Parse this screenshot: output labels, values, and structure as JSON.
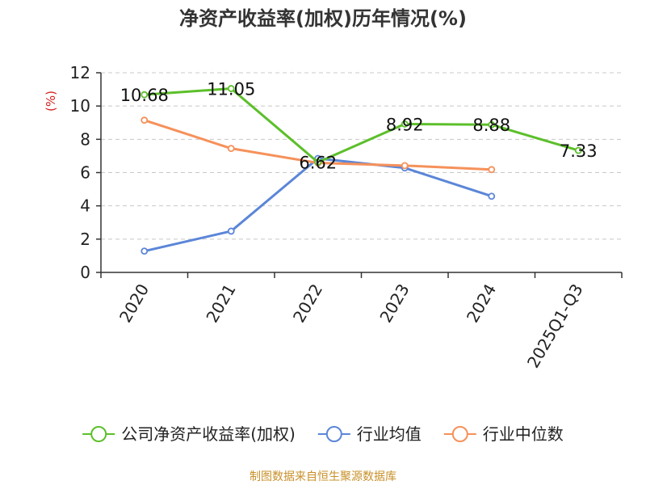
{
  "chart_data": {
    "type": "line",
    "title": "净资产收益率(加权)历年情况(%)",
    "ylabel": "(%)",
    "xlabel": "",
    "ylim": [
      0,
      12
    ],
    "yticks": [
      0,
      2,
      4,
      6,
      8,
      10,
      12
    ],
    "grid": true,
    "legend_position": "bottom",
    "categories": [
      "2020",
      "2021",
      "2022",
      "2023",
      "2024",
      "2025Q1-Q3"
    ],
    "series": [
      {
        "name": "公司净资产收益率(加权)",
        "color": "#5cbf2a",
        "values": [
          10.68,
          11.05,
          6.62,
          8.92,
          8.88,
          7.33
        ],
        "show_labels": true
      },
      {
        "name": "行业均值",
        "color": "#5b86d8",
        "values": [
          1.28,
          2.48,
          6.85,
          6.28,
          4.58,
          null
        ],
        "show_labels": false
      },
      {
        "name": "行业中位数",
        "color": "#f6915a",
        "values": [
          9.15,
          7.45,
          6.58,
          6.42,
          6.18,
          null
        ],
        "show_labels": false
      }
    ]
  },
  "source_text": "制图数据来自恒生聚源数据库",
  "colors": {
    "ylabel": "#d42020",
    "source": "#c8902a",
    "grid": "#c8c8c8",
    "axis": "#333333"
  }
}
